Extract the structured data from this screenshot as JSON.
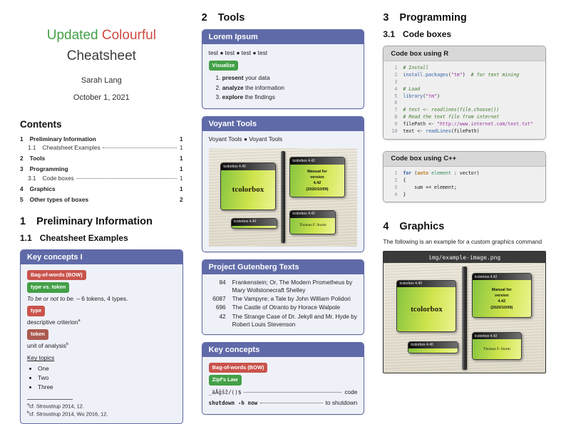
{
  "palette": {
    "purple": "#5f6aa8",
    "green": "#43a047",
    "red": "#cd4a41",
    "red-badge": "#c9544c",
    "token-red": "#aa5a4e"
  },
  "header": {
    "title_word1": "Updated",
    "title_word2": "Colourful",
    "title_line2": "Cheatsheet",
    "author": "Sarah Lang",
    "date": "October 1, 2021"
  },
  "contents": {
    "heading": "Contents",
    "entries": [
      {
        "num": "1",
        "label": "Preliminary Information",
        "page": "1",
        "level": 1
      },
      {
        "num": "1.1",
        "label": "Cheatsheet Examples",
        "page": "1",
        "level": 2
      },
      {
        "num": "2",
        "label": "Tools",
        "page": "1",
        "level": 1
      },
      {
        "num": "3",
        "label": "Programming",
        "page": "1",
        "level": 1
      },
      {
        "num": "3.1",
        "label": "Code boxes",
        "page": "1",
        "level": 2
      },
      {
        "num": "4",
        "label": "Graphics",
        "page": "1",
        "level": 1
      },
      {
        "num": "5",
        "label": "Other types of boxes",
        "page": "2",
        "level": 1
      }
    ]
  },
  "sections": {
    "prelim": {
      "number": "1",
      "title": "Preliminary Information"
    },
    "examples": {
      "number": "1.1",
      "title": "Cheatsheet Examples"
    },
    "tools": {
      "number": "2",
      "title": "Tools"
    },
    "programming": {
      "number": "3",
      "title": "Programming"
    },
    "codeboxes": {
      "number": "3.1",
      "title": "Code boxes"
    },
    "graphics": {
      "number": "4",
      "title": "Graphics"
    }
  },
  "key_concepts_1": {
    "title": "Key concepts I",
    "badge_bow": "Bag-of-words (BOW)",
    "badge_type_token": "type vs. token",
    "example_italic": "To be or not to be.",
    "example_rest": "– 6 tokens, 4 types.",
    "badge_type": "type",
    "type_def": "descriptive criterion",
    "fn_a_mark": "a",
    "badge_token": "token",
    "token_def": "unit of analysis",
    "fn_b_mark": "b",
    "topics_heading": "Key topics",
    "topics": [
      "One",
      "Two",
      "Three"
    ],
    "footnote_a": "cf. Stroustrup 2014, 12.",
    "footnote_b": "cf. Stroustrup 2014, Wu 2016, 12."
  },
  "lorem_box": {
    "title": "Lorem Ipsum",
    "test_line": "test ● test ● test ● test",
    "badge_visualize": "Visualize",
    "steps": [
      {
        "bold": "present",
        "rest": " your data"
      },
      {
        "bold": "analyze",
        "rest": " the information"
      },
      {
        "bold": "explore",
        "rest": " the findings"
      }
    ]
  },
  "voyant_box": {
    "title": "Voyant Tools",
    "links_line": "Voyant Tools ● Voyant Tools"
  },
  "gutenberg_box": {
    "title": "Project Gutenberg Texts",
    "rows": [
      {
        "id": "84",
        "title": "Frankenstein; Or, The Modern Prometheus by Mary Wollstonecraft Shelley"
      },
      {
        "id": "6087",
        "title": "The Vampyre; a Tale by John William Polidori"
      },
      {
        "id": "696",
        "title": "The Castle of Otranto by Horace Walpole"
      },
      {
        "id": "42",
        "title": "The Strange Case of Dr. Jekyll and Mr. Hyde by Robert Louis Stevenson"
      }
    ]
  },
  "key_concepts_2": {
    "title": "Key concepts",
    "badge_bow": "Bag-of-words (BOW)",
    "badge_zipf": "Zipf's Law",
    "lines": [
      {
        "left": "_äÄĝšž/()$",
        "right": "code",
        "bold": false
      },
      {
        "left": "shutdown -h now",
        "right": "to shutdown",
        "bold": true
      }
    ]
  },
  "code_r": {
    "title": "Code box using R",
    "lines": [
      [
        {
          "t": "# Install",
          "c": "com"
        }
      ],
      [
        {
          "t": "install.packages",
          "c": "fun"
        },
        {
          "t": "(",
          "c": "pln"
        },
        {
          "t": "\"tm\"",
          "c": "str"
        },
        {
          "t": ")  ",
          "c": "pln"
        },
        {
          "t": "# for text mining",
          "c": "com"
        }
      ],
      [],
      [
        {
          "t": "# Load",
          "c": "com"
        }
      ],
      [
        {
          "t": "library",
          "c": "fun"
        },
        {
          "t": "(",
          "c": "pln"
        },
        {
          "t": "\"tm\"",
          "c": "str"
        },
        {
          "t": ")",
          "c": "pln"
        }
      ],
      [],
      [
        {
          "t": "# test <- readlines(file.choose())",
          "c": "com"
        }
      ],
      [
        {
          "t": "# Read the text file from internet",
          "c": "com"
        }
      ],
      [
        {
          "t": "filePath <- ",
          "c": "pln"
        },
        {
          "t": "\"http://www.internet.com/text.txt\"",
          "c": "str"
        }
      ],
      [
        {
          "t": "text <- ",
          "c": "pln"
        },
        {
          "t": "readLines",
          "c": "fun"
        },
        {
          "t": "(filePath)",
          "c": "pln"
        }
      ]
    ]
  },
  "code_cpp": {
    "title": "Code box using C++",
    "lines": [
      [
        {
          "t": "for",
          "c": "kw"
        },
        {
          "t": " (",
          "c": "pln"
        },
        {
          "t": "auto",
          "c": "typ"
        },
        {
          "t": " ",
          "c": "pln"
        },
        {
          "t": "element",
          "c": "var"
        },
        {
          "t": " : vector)",
          "c": "pln"
        }
      ],
      [
        {
          "t": "{",
          "c": "pln"
        }
      ],
      [
        {
          "t": "    sum += element;",
          "c": "pln"
        }
      ],
      [
        {
          "t": "}",
          "c": "pln"
        }
      ]
    ]
  },
  "graphics_section": {
    "caption": "The following is an example for a custom graphics command",
    "image_label": "img/example-image.png"
  },
  "tcolorbox_image": {
    "box1_header": "tcolorbox 4.40",
    "box1_text": "tcolorbox",
    "box2_header": "tcolorbox 4.42",
    "box2_lines": [
      "Manual for",
      "version",
      "4.42",
      "(2020/10/09)"
    ],
    "box3_header": "tcolorbox 4.40",
    "box4_header": "tcolorbox 4.42",
    "box4_text": "Thomas F. Sturm"
  }
}
